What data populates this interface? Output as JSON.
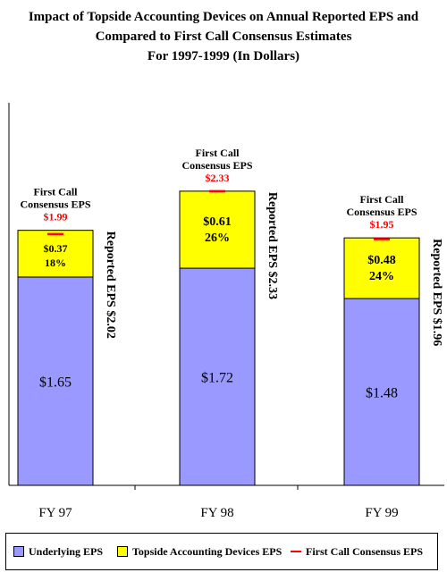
{
  "chart_data": {
    "type": "bar",
    "stacked": true,
    "title": [
      "Impact of Topside Accounting Devices on Annual Reported EPS and",
      "Compared to First Call Consensus Estimates",
      "For 1997-1999 (In Dollars)"
    ],
    "categories": [
      "FY 97",
      "FY 98",
      "FY 99"
    ],
    "series": [
      {
        "name": "Underlying EPS",
        "values": [
          1.65,
          1.72,
          1.48
        ],
        "labels": [
          "$1.65",
          "$1.72",
          "$1.48"
        ],
        "color": "#9999ff"
      },
      {
        "name": "Topside Accounting Devices EPS",
        "values": [
          0.37,
          0.61,
          0.48
        ],
        "labels": [
          "$0.37",
          "$0.61",
          "$0.48"
        ],
        "percent_labels": [
          "18%",
          "26%",
          "24%"
        ],
        "color": "#ffff00"
      }
    ],
    "consensus": {
      "name": "First Call Consensus EPS",
      "caption_line1": "First Call",
      "caption_line2": "Consensus EPS",
      "values": [
        1.99,
        2.33,
        1.95
      ],
      "labels": [
        "$1.99",
        "$2.33",
        "$1.95"
      ],
      "color": "#ff0000"
    },
    "reported_labels": [
      "Reported  EPS $2.02",
      "Reported EPS $2.33",
      "Reported EPS $1.96"
    ],
    "ylim": [
      0,
      3.03
    ],
    "grid": false,
    "legend_position": "bottom"
  }
}
